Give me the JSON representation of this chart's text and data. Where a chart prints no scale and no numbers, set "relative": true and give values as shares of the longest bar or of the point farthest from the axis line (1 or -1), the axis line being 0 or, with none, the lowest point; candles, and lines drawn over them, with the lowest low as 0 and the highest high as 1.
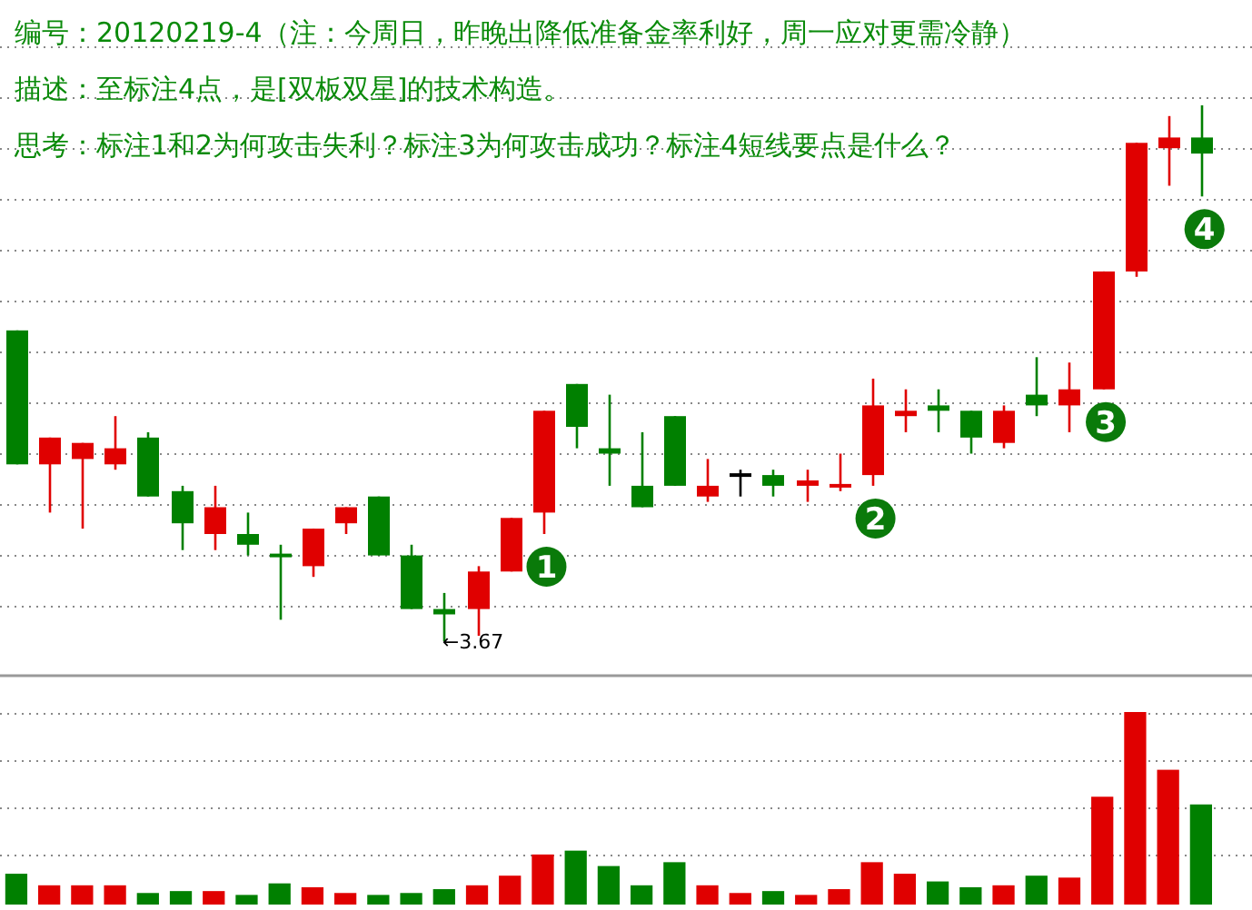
{
  "chart_data": [
    {
      "type": "candlestick",
      "relative": true,
      "grid": true,
      "categories": [
        null,
        null,
        null,
        null,
        null,
        null,
        null,
        null,
        null,
        null,
        null,
        null,
        null,
        null,
        null,
        null,
        null,
        null,
        null,
        null,
        null,
        null,
        null,
        null,
        null,
        null,
        null,
        null,
        null,
        null,
        null,
        null,
        null,
        null,
        null,
        null,
        null
      ],
      "ohlc": [
        [
          0.58,
          0.58,
          0.33,
          0.33
        ],
        [
          0.33,
          0.38,
          0.24,
          0.38
        ],
        [
          0.34,
          0.37,
          0.21,
          0.37
        ],
        [
          0.33,
          0.42,
          0.32,
          0.36
        ],
        [
          0.38,
          0.39,
          0.27,
          0.27
        ],
        [
          0.28,
          0.29,
          0.17,
          0.22
        ],
        [
          0.2,
          0.29,
          0.17,
          0.25
        ],
        [
          0.2,
          0.24,
          0.16,
          0.18
        ],
        [
          0.16,
          0.18,
          0.04,
          0.16
        ],
        [
          0.14,
          0.21,
          0.12,
          0.21
        ],
        [
          0.22,
          0.25,
          0.2,
          0.25
        ],
        [
          0.27,
          0.27,
          0.16,
          0.16
        ],
        [
          0.16,
          0.18,
          0.06,
          0.06
        ],
        [
          0.06,
          0.09,
          0,
          0.05
        ],
        [
          0.06,
          0.14,
          0.01,
          0.13
        ],
        [
          0.13,
          0.23,
          0.13,
          0.23
        ],
        [
          0.24,
          0.43,
          0.2,
          0.43
        ],
        [
          0.48,
          0.48,
          0.36,
          0.4
        ],
        [
          0.36,
          0.46,
          0.29,
          0.35
        ],
        [
          0.29,
          0.39,
          0.25,
          0.25
        ],
        [
          0.42,
          0.42,
          0.29,
          0.29
        ],
        [
          0.27,
          0.34,
          0.26,
          0.29
        ],
        [
          0.31,
          0.32,
          0.27,
          0.31
        ],
        [
          0.31,
          0.32,
          0.27,
          0.29
        ],
        [
          0.29,
          0.32,
          0.26,
          0.3
        ],
        [
          0.29,
          0.35,
          0.28,
          0.29
        ],
        [
          0.31,
          0.49,
          0.29,
          0.44
        ],
        [
          0.42,
          0.47,
          0.39,
          0.43
        ],
        [
          0.44,
          0.47,
          0.39,
          0.43
        ],
        [
          0.43,
          0.43,
          0.35,
          0.38
        ],
        [
          0.37,
          0.44,
          0.36,
          0.43
        ],
        [
          0.46,
          0.53,
          0.42,
          0.44
        ],
        [
          0.44,
          0.52,
          0.39,
          0.47
        ],
        [
          0.47,
          0.69,
          0.47,
          0.69
        ],
        [
          0.69,
          0.93,
          0.68,
          0.93
        ],
        [
          0.92,
          0.98,
          0.85,
          0.94
        ],
        [
          0.94,
          1,
          0.83,
          0.91
        ]
      ],
      "colors": [
        "#008000",
        "#e00000",
        "#e00000",
        "#e00000",
        "#008000",
        "#008000",
        "#e00000",
        "#008000",
        "#008000",
        "#e00000",
        "#e00000",
        "#008000",
        "#008000",
        "#008000",
        "#e00000",
        "#e00000",
        "#e00000",
        "#008000",
        "#008000",
        "#008000",
        "#008000",
        "#e00000",
        "#000000",
        "#008000",
        "#e00000",
        "#e00000",
        "#e00000",
        "#e00000",
        "#008000",
        "#008000",
        "#e00000",
        "#008000",
        "#e00000",
        "#e00000",
        "#e00000",
        "#e00000",
        "#008000"
      ],
      "annotations": [
        "编号：20120219-4（注：今周日，昨晚出降低准备金率利好，周一应对更需冷静）",
        "描述：至标注4点，是[双板双星]的技术构造。",
        "思考：标注1和2为何攻击失利？标注3为何攻击成功？标注4短线要点是什么？",
        {
          "text": "←3.67",
          "y": 0
        },
        {
          "text": "1",
          "y": 0.2
        },
        {
          "text": "2",
          "y": 0.29
        },
        {
          "text": "3",
          "y": 0.47
        },
        {
          "text": "4",
          "y": 0.83
        }
      ]
    },
    {
      "type": "bar",
      "relative": true,
      "grid": true,
      "categories": [
        null,
        null,
        null,
        null,
        null,
        null,
        null,
        null,
        null,
        null,
        null,
        null,
        null,
        null,
        null,
        null,
        null,
        null,
        null,
        null,
        null,
        null,
        null,
        null,
        null,
        null,
        null,
        null,
        null,
        null,
        null,
        null,
        null,
        null,
        null,
        null,
        null
      ],
      "values": [
        0.16,
        0.1,
        0.1,
        0.1,
        0.06,
        0.07,
        0.07,
        0.05,
        0.11,
        0.09,
        0.06,
        0.05,
        0.06,
        0.08,
        0.1,
        0.15,
        0.26,
        0.28,
        0.2,
        0.1,
        0.22,
        0.1,
        0.06,
        0.07,
        0.05,
        0.08,
        0.22,
        0.16,
        0.12,
        0.09,
        0.1,
        0.15,
        0.14,
        0.56,
        1,
        0.7,
        0.52
      ],
      "colors": [
        "#008000",
        "#e00000",
        "#e00000",
        "#e00000",
        "#008000",
        "#008000",
        "#e00000",
        "#008000",
        "#008000",
        "#e00000",
        "#e00000",
        "#008000",
        "#008000",
        "#008000",
        "#e00000",
        "#e00000",
        "#e00000",
        "#008000",
        "#008000",
        "#008000",
        "#008000",
        "#e00000",
        "#e00000",
        "#008000",
        "#e00000",
        "#e00000",
        "#e00000",
        "#e00000",
        "#008000",
        "#008000",
        "#e00000",
        "#008000",
        "#e00000",
        "#e00000",
        "#e00000",
        "#e00000",
        "#008000"
      ]
    }
  ]
}
